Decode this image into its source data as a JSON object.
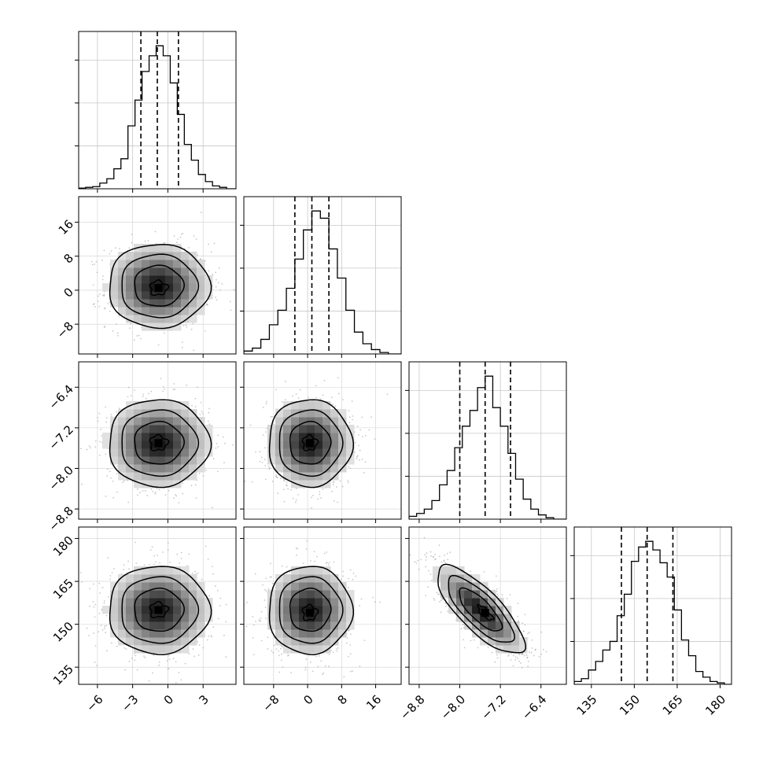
{
  "chart_data": {
    "type": "corner",
    "title": "",
    "n_parameters": 4,
    "grid": true,
    "legend": "none",
    "parameters": [
      {
        "range": [
          -7.6,
          5.8
        ],
        "ticks": [
          -6,
          -3,
          0,
          3
        ],
        "tick_labels": [
          "−6",
          "−3",
          "0",
          "3"
        ],
        "quantiles": [
          -2.3,
          -0.9,
          0.9
        ],
        "histogram": {
          "bin_edges": [
            -7.6,
            -7.0,
            -6.4,
            -5.8,
            -5.2,
            -4.6,
            -4.0,
            -3.4,
            -2.8,
            -2.2,
            -1.6,
            -1.0,
            -0.4,
            0.2,
            0.8,
            1.4,
            2.0,
            2.6,
            3.2,
            3.8,
            4.4,
            5.0,
            5.8
          ],
          "counts": [
            0.005,
            0.01,
            0.015,
            0.04,
            0.07,
            0.14,
            0.21,
            0.44,
            0.62,
            0.82,
            0.93,
            1.0,
            0.93,
            0.74,
            0.52,
            0.31,
            0.2,
            0.1,
            0.05,
            0.02,
            0.01,
            0.0
          ]
        }
      },
      {
        "range": [
          -15,
          22
        ],
        "ticks": [
          -8,
          0,
          8,
          16
        ],
        "tick_labels": [
          "−8",
          "0",
          "8",
          "16"
        ],
        "quantiles": [
          -3,
          1,
          5
        ],
        "histogram": {
          "bin_edges": [
            -15,
            -13,
            -11,
            -9,
            -7,
            -5,
            -3,
            -1,
            1,
            3,
            5,
            7,
            9,
            11,
            13,
            15,
            17,
            19,
            22
          ],
          "counts": [
            0.02,
            0.04,
            0.1,
            0.2,
            0.3,
            0.45,
            0.65,
            0.85,
            0.98,
            0.93,
            0.72,
            0.52,
            0.3,
            0.15,
            0.07,
            0.03,
            0.01,
            0.0
          ]
        }
      },
      {
        "range": [
          -9.0,
          -5.9
        ],
        "ticks": [
          -8.8,
          -8.0,
          -7.2,
          -6.4
        ],
        "tick_labels": [
          "−8.8",
          "−8.0",
          "−7.2",
          "−6.4"
        ],
        "quantiles": [
          -8.0,
          -7.5,
          -7.0
        ],
        "histogram": {
          "bin_edges": [
            -9.0,
            -8.85,
            -8.7,
            -8.55,
            -8.4,
            -8.25,
            -8.1,
            -7.95,
            -7.8,
            -7.65,
            -7.5,
            -7.35,
            -7.2,
            -7.05,
            -6.9,
            -6.75,
            -6.6,
            -6.45,
            -6.3,
            -6.15,
            -5.9
          ],
          "counts": [
            0.02,
            0.04,
            0.07,
            0.13,
            0.24,
            0.34,
            0.5,
            0.65,
            0.76,
            0.92,
            1.0,
            0.78,
            0.65,
            0.46,
            0.28,
            0.14,
            0.07,
            0.03,
            0.01,
            0.0
          ]
        }
      },
      {
        "range": [
          129,
          184
        ],
        "ticks": [
          135,
          150,
          165,
          180
        ],
        "tick_labels": [
          "135",
          "150",
          "165",
          "180"
        ],
        "quantiles": [
          145.5,
          154.5,
          163.5
        ],
        "histogram": {
          "bin_edges": [
            129,
            131.5,
            134,
            136.5,
            139,
            141.5,
            144,
            146.5,
            149,
            151.5,
            154,
            156.5,
            159,
            161.5,
            164,
            166.5,
            169,
            171.5,
            174,
            176.5,
            179,
            181.5,
            184
          ],
          "counts": [
            0.02,
            0.04,
            0.1,
            0.16,
            0.24,
            0.3,
            0.48,
            0.63,
            0.86,
            0.96,
            1.0,
            0.94,
            0.85,
            0.75,
            0.52,
            0.31,
            0.2,
            0.09,
            0.05,
            0.02,
            0.01,
            0.0
          ]
        }
      }
    ],
    "joint": [
      {
        "x_param": 0,
        "y_param": 1,
        "mean": [
          -0.8,
          1.0
        ],
        "sd": [
          2.1,
          4.8
        ],
        "corr": 0.0,
        "peak": [
          -0.8,
          0.5
        ]
      },
      {
        "x_param": 0,
        "y_param": 2,
        "mean": [
          -0.8,
          -7.5
        ],
        "sd": [
          2.1,
          0.42
        ],
        "corr": 0.0,
        "peak": [
          -0.8,
          -7.5
        ]
      },
      {
        "x_param": 1,
        "y_param": 2,
        "mean": [
          0.5,
          -7.5
        ],
        "sd": [
          4.8,
          0.42
        ],
        "corr": 0.0,
        "peak": [
          0.5,
          -7.5
        ]
      },
      {
        "x_param": 0,
        "y_param": 3,
        "mean": [
          -0.8,
          155.0
        ],
        "sd": [
          2.1,
          7.5
        ],
        "corr": 0.0,
        "peak": [
          -0.8,
          155.0
        ]
      },
      {
        "x_param": 1,
        "y_param": 3,
        "mean": [
          0.5,
          155.0
        ],
        "sd": [
          4.8,
          7.5
        ],
        "corr": 0.0,
        "peak": [
          0.5,
          154.0
        ]
      },
      {
        "x_param": 2,
        "y_param": 3,
        "mean": [
          -7.6,
          155.0
        ],
        "sd": [
          0.42,
          7.5
        ],
        "corr": -0.78,
        "peak": [
          -7.5,
          154.0
        ]
      }
    ]
  }
}
